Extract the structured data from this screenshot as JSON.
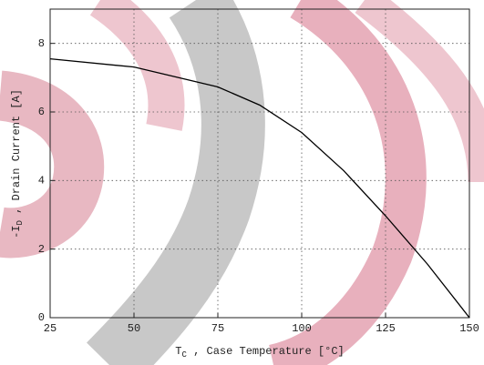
{
  "chart_data": {
    "type": "line",
    "xlabel_parts": [
      "T",
      "C",
      " , Case Temperature [°C]"
    ],
    "ylabel_parts": [
      "-I",
      "D",
      " , Drain Current [A]"
    ],
    "x": [
      25,
      50,
      75,
      87.5,
      100,
      112.5,
      125,
      137.5,
      150
    ],
    "values": [
      7.55,
      7.31,
      6.73,
      6.2,
      5.4,
      4.29,
      2.97,
      1.56,
      0
    ],
    "color": "#000000",
    "xlim": [
      25,
      150
    ],
    "xticks": [
      25,
      50,
      75,
      100,
      125,
      150
    ],
    "ylim": [
      0,
      9
    ],
    "yticks": [
      0,
      2,
      4,
      6,
      8
    ],
    "grid": true
  }
}
